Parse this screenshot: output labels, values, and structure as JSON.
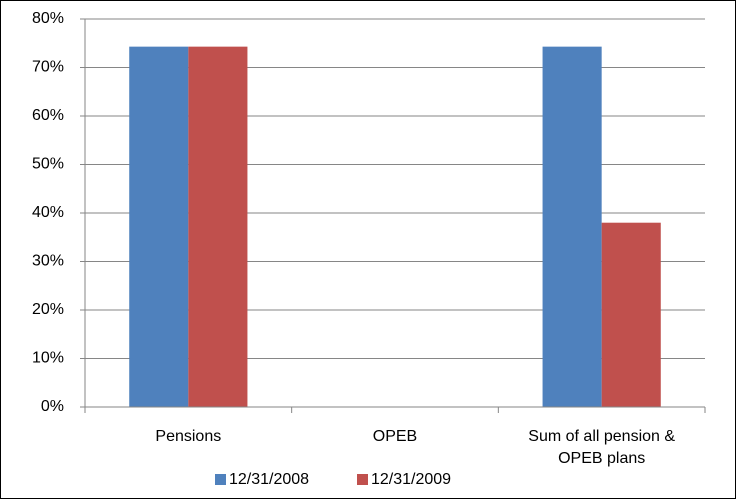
{
  "chart_data": {
    "type": "bar",
    "categories": [
      "Pensions",
      "OPEB",
      "Sum of all pension & OPEB plans"
    ],
    "series": [
      {
        "name": "12/31/2008",
        "color": "#4f81bd",
        "values": [
          74.3,
          0,
          74.3
        ]
      },
      {
        "name": "12/31/2009",
        "color": "#c0504d",
        "values": [
          74.3,
          0,
          38
        ]
      }
    ],
    "ylim": [
      0,
      80
    ],
    "yticks": [
      {
        "value": 0,
        "label": "0%"
      },
      {
        "value": 10,
        "label": "10%"
      },
      {
        "value": 20,
        "label": "20%"
      },
      {
        "value": 30,
        "label": "30%"
      },
      {
        "value": 40,
        "label": "40%"
      },
      {
        "value": 50,
        "label": "50%"
      },
      {
        "value": 60,
        "label": "60%"
      },
      {
        "value": 70,
        "label": "70%"
      },
      {
        "value": 80,
        "label": "80%"
      }
    ],
    "grid": true,
    "legend": "bottom"
  }
}
